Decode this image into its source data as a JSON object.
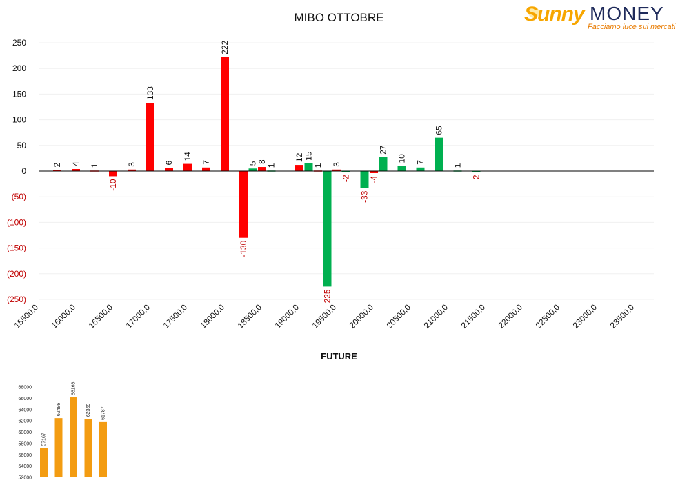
{
  "header": {
    "title": "MIBO OTTOBRE",
    "logo_brand": "Sunny",
    "logo_brand2": "MONEY",
    "logo_tagline": "Facciamo luce sui mercati"
  },
  "chart_data": [
    {
      "type": "bar",
      "title": "MIBO OTTOBRE",
      "y_ticks": [
        250,
        200,
        150,
        100,
        50,
        0,
        -50,
        -100,
        -150,
        -200,
        -250
      ],
      "y_tick_labels": [
        "250",
        "200",
        "150",
        "100",
        "50",
        "0",
        "(50)",
        "(100)",
        "(150)",
        "(200)",
        "(250)"
      ],
      "ylim": [
        -250,
        250
      ],
      "x_ticks": [
        "15500,0",
        "16000,0",
        "16500,0",
        "17000,0",
        "17500,0",
        "18000,0",
        "18500,0",
        "19000,0",
        "19500,0",
        "20000,0",
        "20500,0",
        "21000,0",
        "21500,0",
        "22000,0",
        "22500,0",
        "23000,0",
        "23500,0"
      ],
      "xlim": [
        15500,
        23500
      ],
      "colors": {
        "red": "#ff0000",
        "green": "#00b050",
        "negative_label": "#c00000"
      },
      "series": [
        {
          "color": "red",
          "x": [
            15750,
            16000,
            16250,
            16500,
            16750,
            17000,
            17250,
            17500,
            17750,
            18000,
            18250,
            18500,
            19000,
            19250,
            19500,
            20000
          ],
          "values": [
            2,
            4,
            1,
            -10,
            3,
            133,
            6,
            14,
            7,
            222,
            -130,
            8,
            12,
            1,
            3,
            -4
          ]
        },
        {
          "color": "green",
          "x": [
            18375,
            18625,
            19125,
            19375,
            19625,
            19875,
            20125,
            20375,
            20625,
            20875,
            21125,
            21375
          ],
          "values": [
            5,
            1,
            15,
            -225,
            -2,
            -33,
            27,
            10,
            7,
            65,
            1,
            -2
          ]
        }
      ]
    },
    {
      "type": "bar",
      "title": "FUTURE",
      "y_ticks": [
        52000,
        54000,
        56000,
        58000,
        60000,
        62000,
        64000,
        66000,
        68000
      ],
      "ylim": [
        52000,
        68000
      ],
      "color": "#f39c12",
      "values": [
        57167,
        62486,
        66166,
        62369,
        61787
      ]
    }
  ]
}
